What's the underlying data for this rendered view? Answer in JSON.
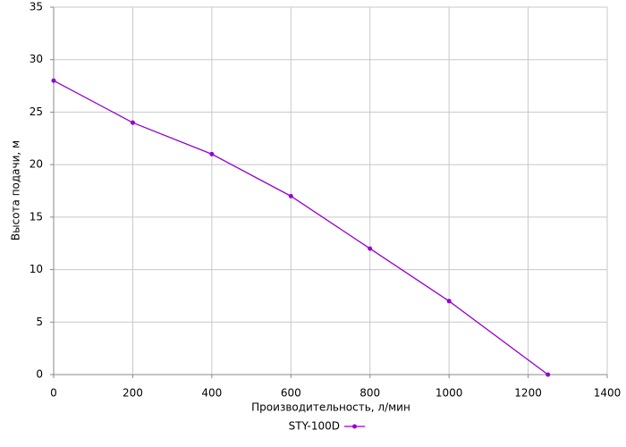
{
  "chart_data": {
    "type": "line",
    "x_label": "Производительность, л/мин",
    "y_label": "Высота подачи, м",
    "x": [
      0,
      200,
      400,
      600,
      800,
      1000,
      1250
    ],
    "series": [
      {
        "name": "STY-100D",
        "color": "#9400d3",
        "values": [
          28,
          24,
          21,
          17,
          12,
          7,
          0
        ]
      }
    ],
    "xlim": [
      0,
      1400
    ],
    "xticks": [
      0,
      200,
      400,
      600,
      800,
      1000,
      1200,
      1400
    ],
    "ylim": [
      0,
      35
    ],
    "yticks": [
      0,
      5,
      10,
      15,
      20,
      25,
      30,
      35
    ],
    "grid": true,
    "legend": "bottom"
  }
}
